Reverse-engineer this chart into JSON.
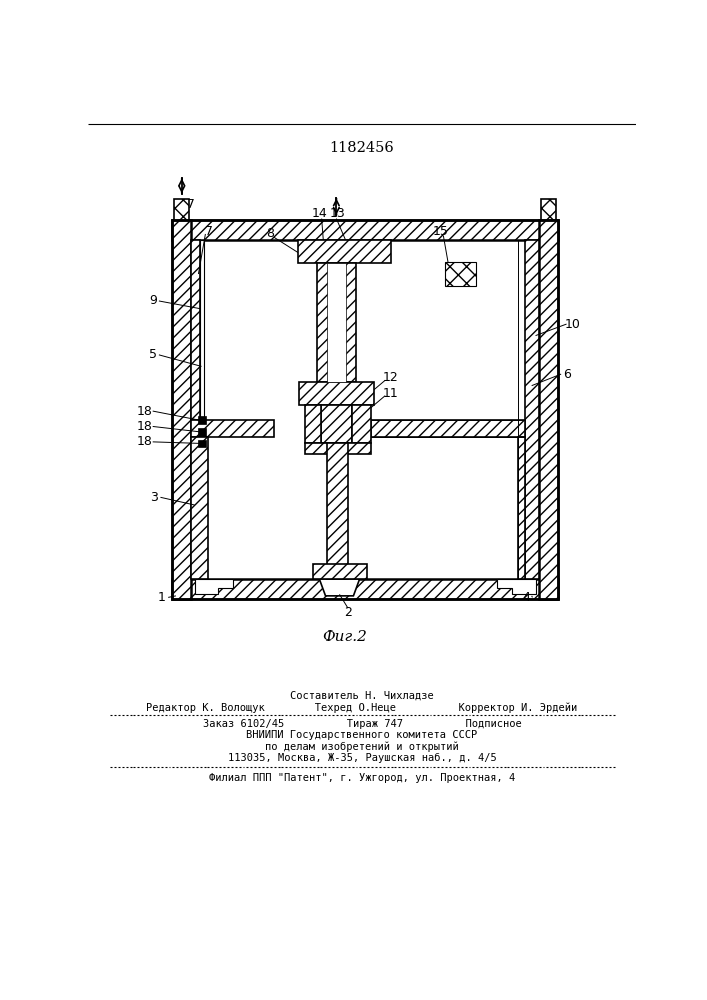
{
  "patent_number": "1182456",
  "fig_label": "Фиг.2",
  "bg_color": "#ffffff",
  "footer_lines": [
    "Составитель Н. Чихладзе",
    "Редактор К. Волощук        Техред О.Неце          Корректор И. Эрдейи",
    "Заказ 6102/45          Тираж 747          Подписное",
    "ВНИИПИ Государственного комитета СССР",
    "по делам изобретений и открытий",
    "113035, Москва, Ж-35, Раушская наб., д. 4/5",
    "Филиал ППП \"Патент\", г. Ужгород, ул. Проектная, 4"
  ]
}
